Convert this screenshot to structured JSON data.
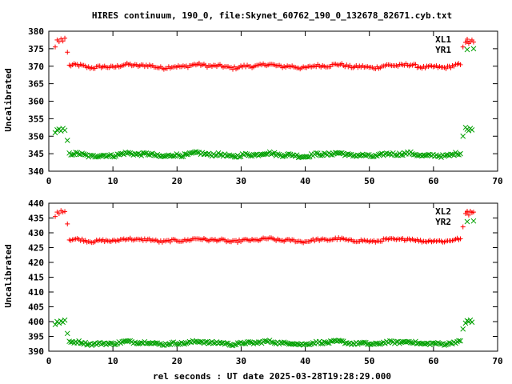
{
  "title": "HIRES continuum, 190_0, file:Skynet_60762_190_0_132678_82671.cyb.txt",
  "xlabel": "rel seconds : UT date 2025-03-28T19:28:29.000",
  "colors": {
    "series1": "#ff0000",
    "series2": "#00a000",
    "axes": "#000000"
  },
  "chart_data": [
    {
      "type": "scatter",
      "ylabel": "Uncalibrated",
      "xlim": [
        0,
        70
      ],
      "ylim": [
        340,
        380
      ],
      "x_ticks": [
        "0",
        "10",
        "20",
        "30",
        "40",
        "50",
        "60",
        "70"
      ],
      "y_ticks": [
        "340",
        "345",
        "350",
        "355",
        "360",
        "365",
        "370",
        "375",
        "380"
      ],
      "legend_position": "top-right",
      "series": [
        {
          "name": "XL1",
          "marker": "plus",
          "color": "#ff0000",
          "start": [
            375.5,
            377.5,
            377.0,
            377.8,
            377.2,
            378.0
          ],
          "dip": 374.0,
          "main": 370.0,
          "end_dip": 375.5,
          "end": [
            376.8,
            377.2,
            376.5,
            377.0,
            377.5,
            376.9
          ]
        },
        {
          "name": "YR1",
          "marker": "cross",
          "color": "#00a000",
          "start": [
            351.0,
            351.8,
            352.0,
            351.5,
            352.2,
            351.7
          ],
          "dip": 348.8,
          "main": 344.7,
          "end_dip": 350.0,
          "end": [
            352.5,
            352.0,
            351.6,
            352.2,
            351.8,
            375.0
          ]
        }
      ]
    },
    {
      "type": "scatter",
      "ylabel": "Uncalibrated",
      "xlim": [
        0,
        70
      ],
      "ylim": [
        390,
        440
      ],
      "x_ticks": [
        "0",
        "10",
        "20",
        "30",
        "40",
        "50",
        "60",
        "70"
      ],
      "y_ticks": [
        "390",
        "395",
        "400",
        "405",
        "410",
        "415",
        "420",
        "425",
        "430",
        "435",
        "440"
      ],
      "legend_position": "top-right",
      "series": [
        {
          "name": "XL2",
          "marker": "plus",
          "color": "#ff0000",
          "start": [
            435.5,
            437.0,
            436.5,
            437.5,
            437.0,
            437.2
          ],
          "dip": 433.0,
          "main": 427.5,
          "end_dip": 432.0,
          "end": [
            436.5,
            437.0,
            436.0,
            437.3,
            436.8,
            437.0
          ]
        },
        {
          "name": "YR2",
          "marker": "cross",
          "color": "#00a000",
          "start": [
            399.0,
            400.0,
            399.5,
            400.2,
            399.8,
            400.5
          ],
          "dip": 396.0,
          "main": 392.8,
          "end_dip": 397.5,
          "end": [
            399.5,
            400.3,
            400.0,
            400.5,
            399.8,
            434.0
          ]
        }
      ]
    }
  ]
}
